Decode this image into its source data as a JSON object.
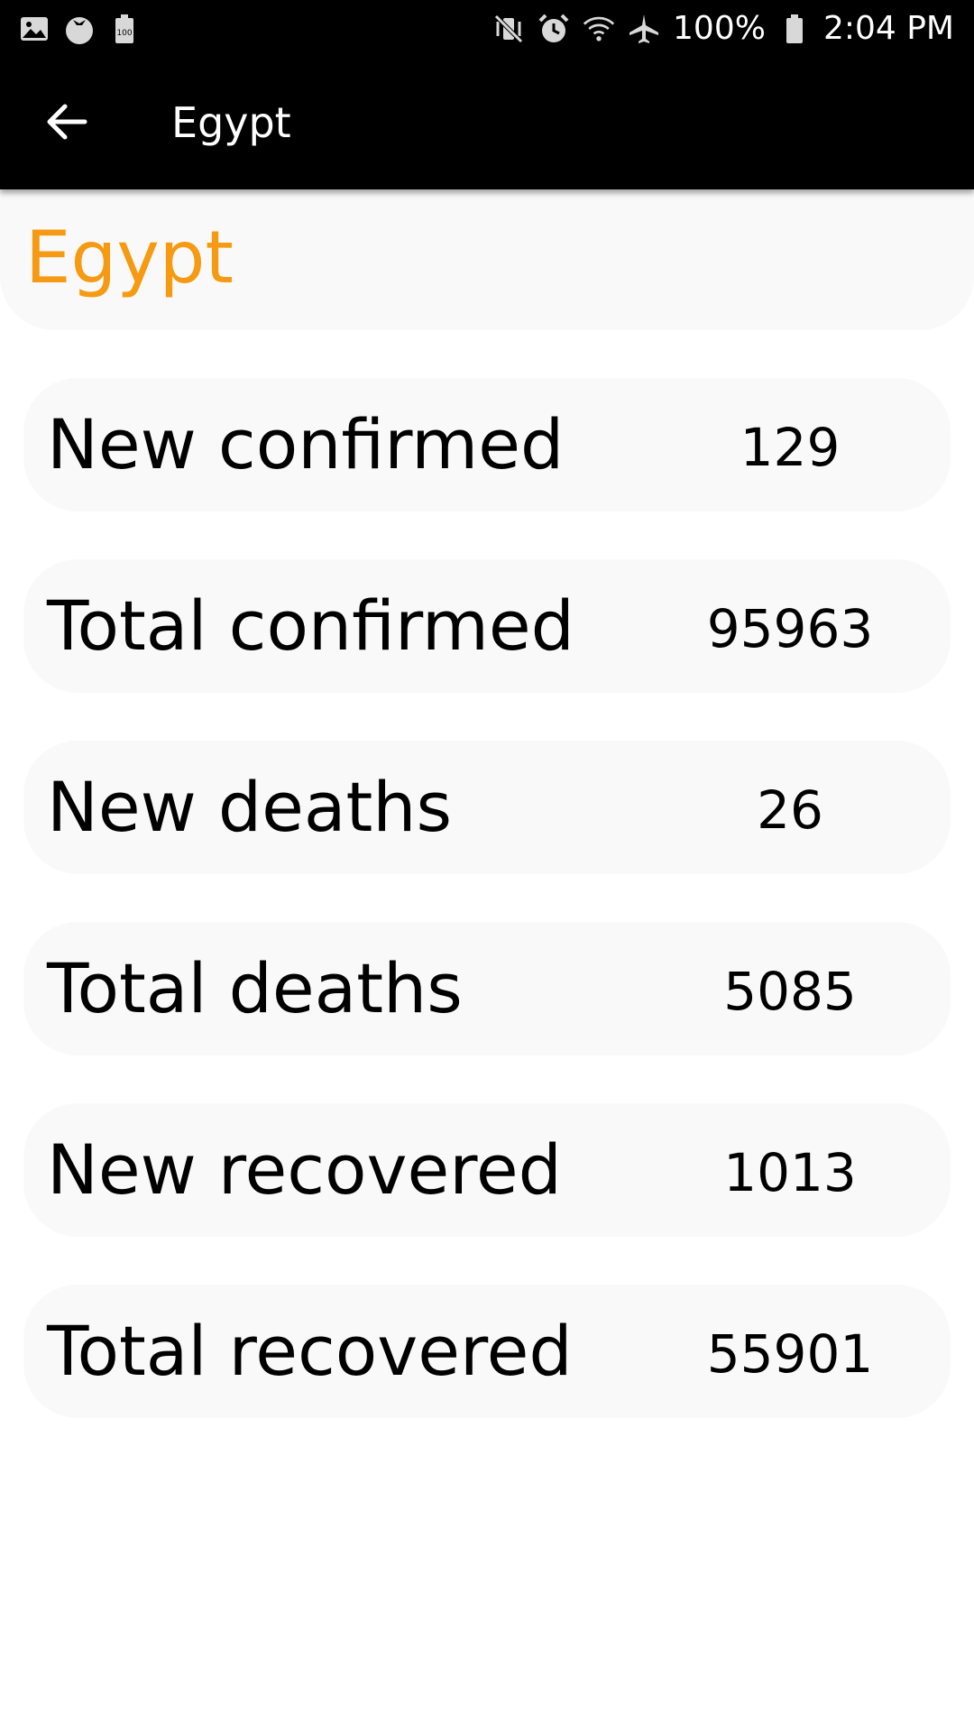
{
  "status_bar": {
    "left_icons": [
      "image-icon",
      "tomato-icon",
      "battery-saver-icon"
    ],
    "right_icons": [
      "vibrate-mute-icon",
      "alarm-icon",
      "wifi-icon",
      "airplane-icon"
    ],
    "battery_percent": "100%",
    "time": "2:04 PM"
  },
  "app_bar": {
    "back_icon": "arrow-left-icon",
    "title": "Egypt"
  },
  "header": {
    "country": "Egypt"
  },
  "stats": [
    {
      "label": "New confirmed",
      "value": "129"
    },
    {
      "label": "Total confirmed",
      "value": "95963"
    },
    {
      "label": "New deaths",
      "value": "26"
    },
    {
      "label": "Total deaths",
      "value": "5085"
    },
    {
      "label": "New recovered",
      "value": "1013"
    },
    {
      "label": "Total recovered",
      "value": "55901"
    }
  ],
  "colors": {
    "accent": "#f59a12",
    "card_background": "#f9f9f9",
    "bar_background": "#000000"
  }
}
